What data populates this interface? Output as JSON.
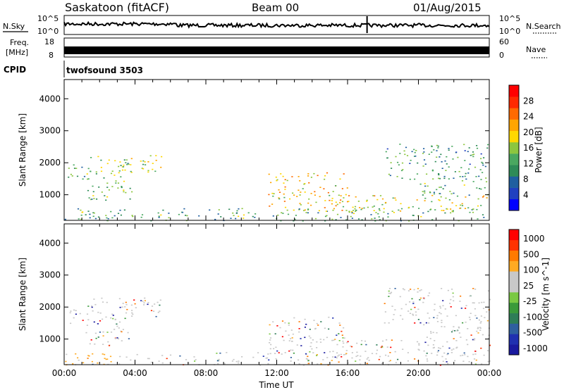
{
  "header": {
    "station_title": "Saskatoon (fitACF)",
    "beam_label": "Beam 00",
    "date_label": "01/Aug/2015"
  },
  "noise_panel": {
    "left_label": "N.Sky",
    "right_label": "N.Search",
    "tick_top_left": "10^5",
    "tick_bottom_left": "10^0",
    "tick_top_right": "10^5",
    "tick_bottom_right": "10^0"
  },
  "freq_panel": {
    "left_label_line1": "Freq.",
    "left_label_line2": "[MHz]",
    "left_tick_top": "18",
    "left_tick_bottom": "8",
    "right_label": "Nave",
    "right_tick_top": "60",
    "right_tick_bottom": "0"
  },
  "cpid_panel": {
    "label": "CPID",
    "value": "twofsound 3503"
  },
  "colors": {
    "power_scale": [
      "#0000ff",
      "#2040c0",
      "#1f5fa0",
      "#2e8b57",
      "#4aa860",
      "#8cc63f",
      "#ffd700",
      "#ffa500",
      "#ff6a00",
      "#ff2a00",
      "#ff0000"
    ],
    "velocity_scale": [
      "#ff0000",
      "#ff3300",
      "#ff7a00",
      "#ffaa22",
      "#c8c8c8",
      "#c8c8c8",
      "#7ac943",
      "#3a9a3a",
      "#2e7d57",
      "#2f5f9f",
      "#2030b0",
      "#1a1a9f"
    ]
  },
  "chart_data": [
    {
      "type": "heatmap",
      "name": "power",
      "ylabel": "Slant Range [km]",
      "yticks": [
        "1000",
        "2000",
        "3000",
        "4000"
      ],
      "ylim": [
        200,
        4600
      ],
      "xlabel": "",
      "xticks": [],
      "xlim": [
        0,
        24
      ],
      "colorbar": {
        "label": "Power [dB]",
        "ticks": [
          "4",
          "8",
          "12",
          "16",
          "20",
          "24",
          "28"
        ],
        "range": [
          0,
          32
        ]
      },
      "echo_regions": [
        {
          "t_start": 0.2,
          "t_end": 1.5,
          "range_start": 1500,
          "range_end": 2000,
          "level": 10
        },
        {
          "t_start": 1.2,
          "t_end": 3.8,
          "range_start": 800,
          "range_end": 2300,
          "level": 14
        },
        {
          "t_start": 3.0,
          "t_end": 5.5,
          "range_start": 1700,
          "range_end": 2300,
          "level": 16
        },
        {
          "t_start": 0.0,
          "t_end": 24.0,
          "range_start": 200,
          "range_end": 600,
          "level": 12
        },
        {
          "t_start": 11.5,
          "t_end": 16.0,
          "range_start": 500,
          "range_end": 1700,
          "level": 20
        },
        {
          "t_start": 15.0,
          "t_end": 24.0,
          "range_start": 500,
          "range_end": 1000,
          "level": 18
        },
        {
          "t_start": 18.0,
          "t_end": 24.0,
          "range_start": 1500,
          "range_end": 2600,
          "level": 10
        },
        {
          "t_start": 20.0,
          "t_end": 24.0,
          "range_start": 1000,
          "range_end": 1600,
          "level": 12
        }
      ]
    },
    {
      "type": "heatmap",
      "name": "velocity",
      "ylabel": "Slant Range [km]",
      "yticks": [
        "1000",
        "2000",
        "3000",
        "4000"
      ],
      "ylim": [
        200,
        4600
      ],
      "xlabel": "Time UT",
      "xticks": [
        "00:00",
        "04:00",
        "08:00",
        "12:00",
        "16:00",
        "20:00",
        "00:00"
      ],
      "xlim": [
        0,
        24
      ],
      "colorbar": {
        "label": "Velocity [m s^-1]",
        "ticks": [
          "1000",
          "500",
          "100",
          "25",
          "-25",
          "-100",
          "-500",
          "-1000"
        ],
        "range": [
          -1000,
          1000
        ]
      }
    }
  ]
}
